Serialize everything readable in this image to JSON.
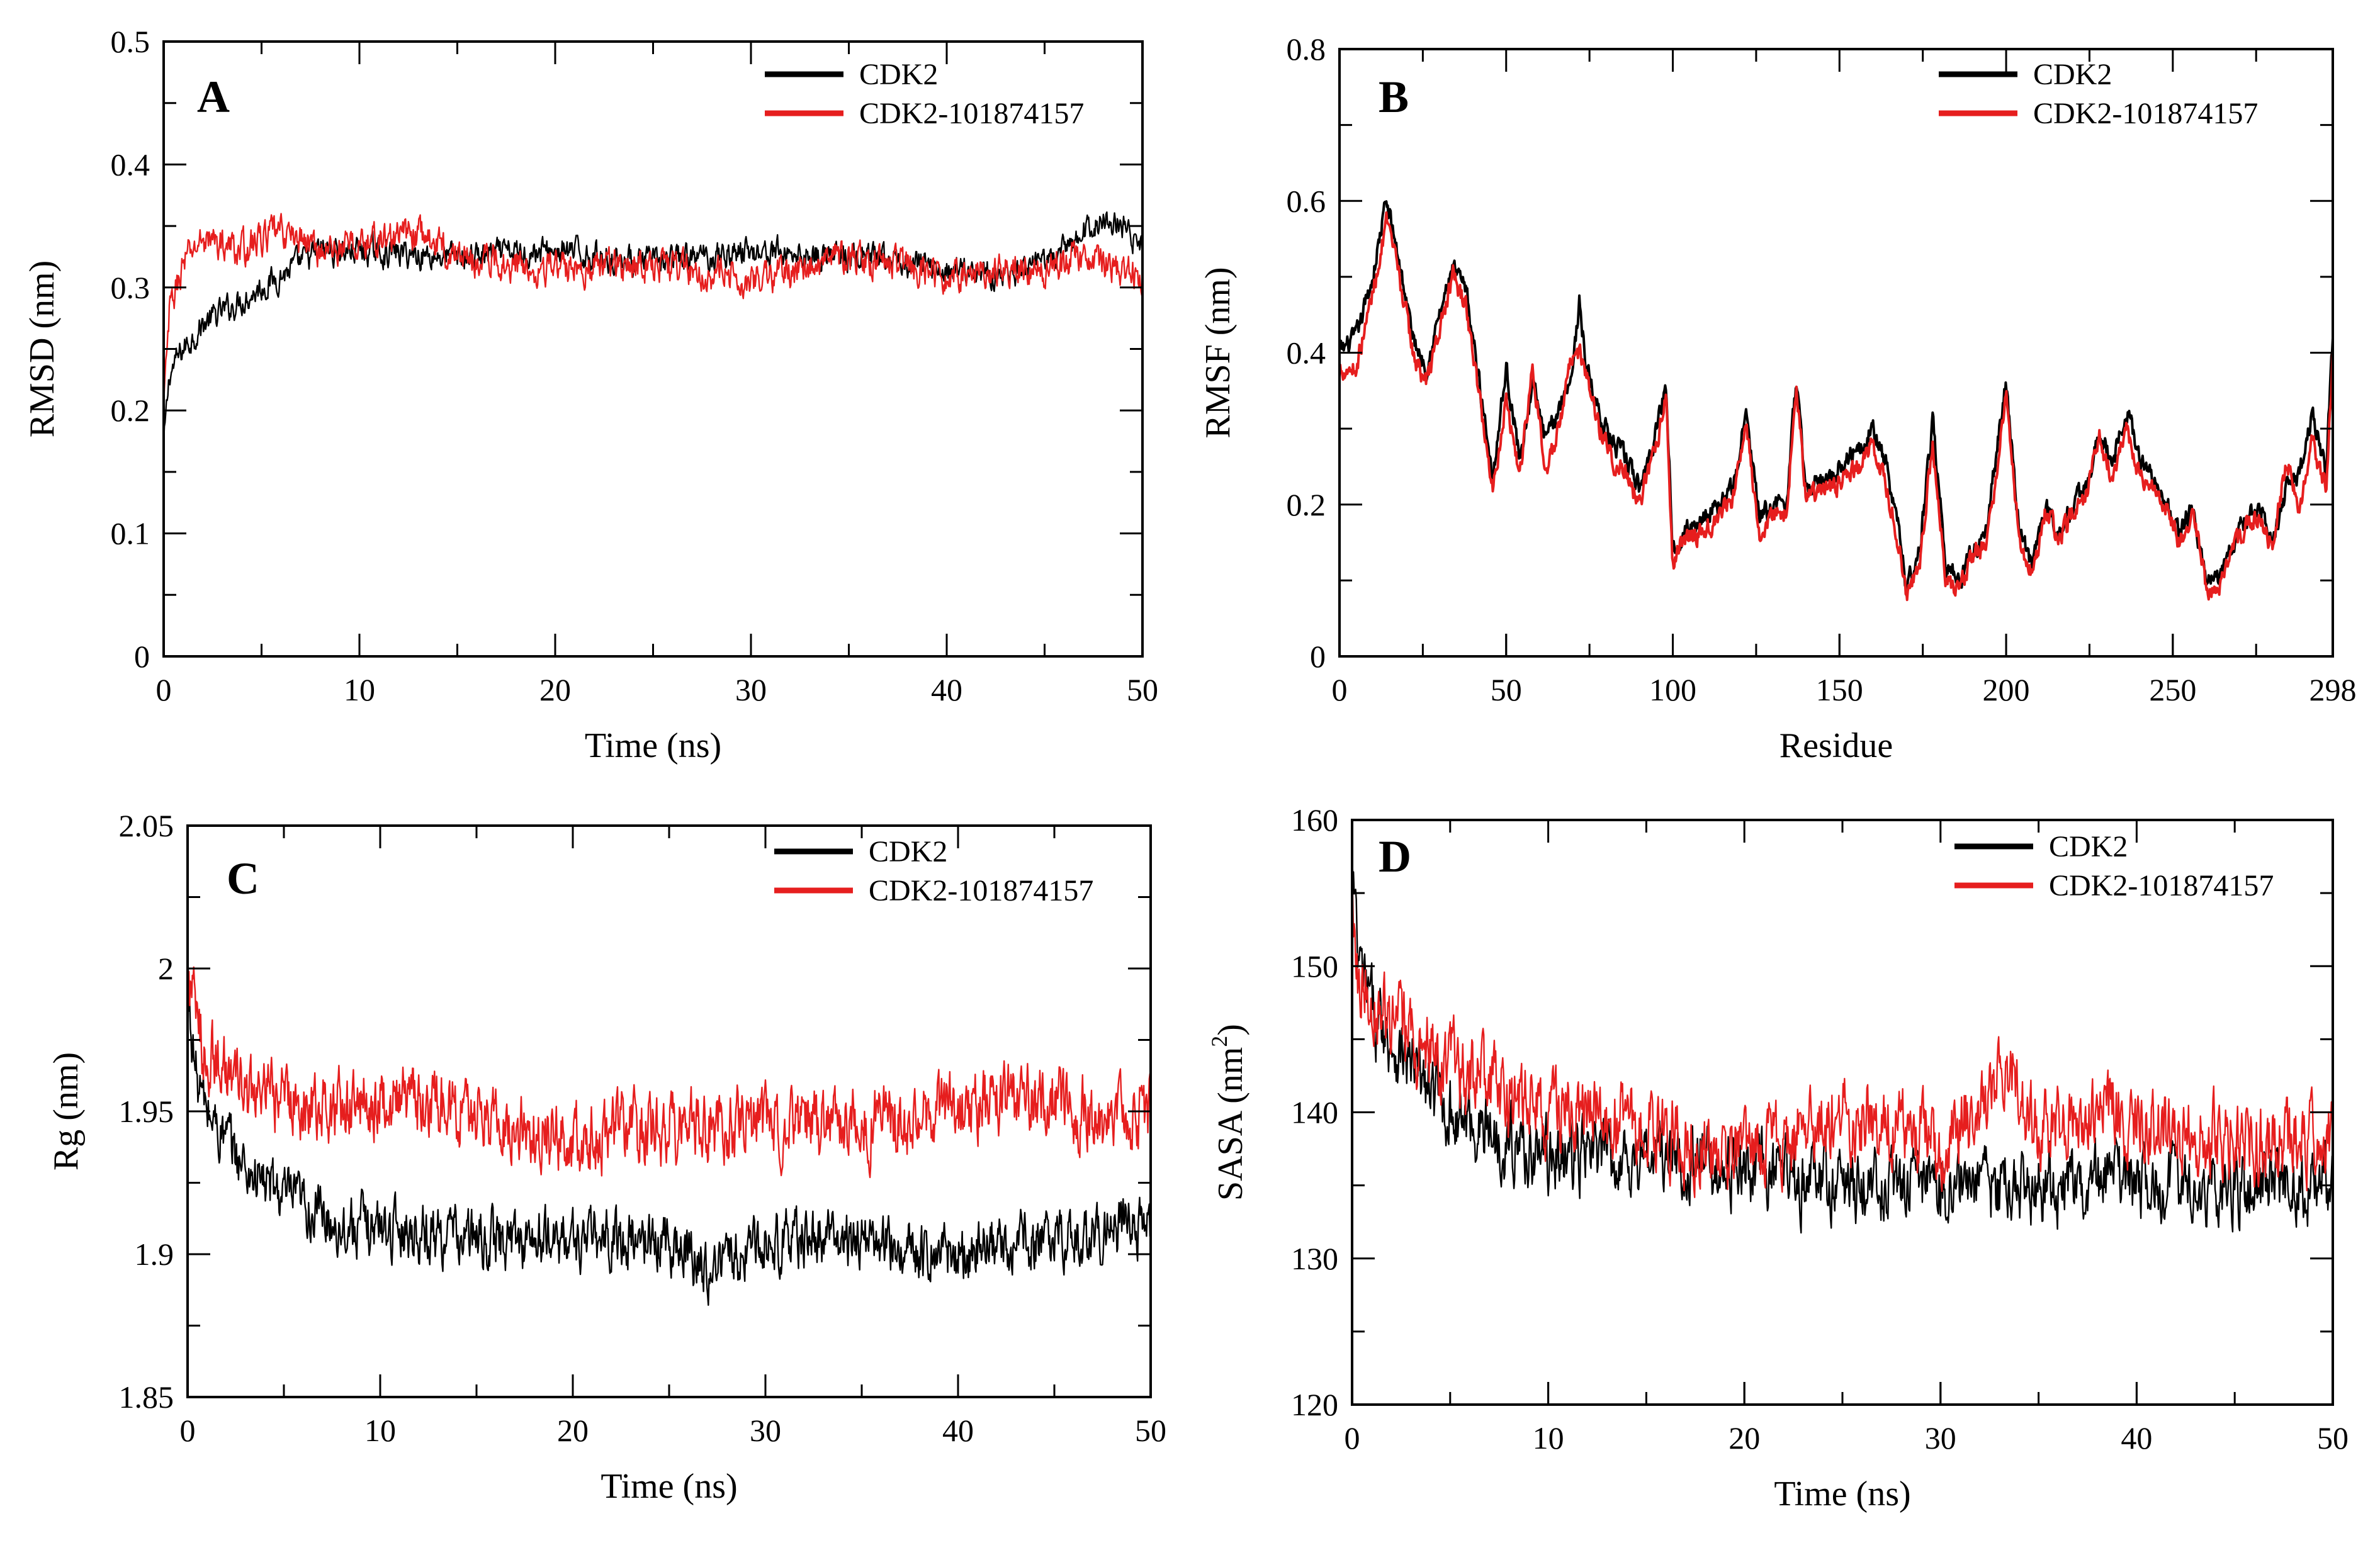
{
  "colors": {
    "cdk2": "#000000",
    "complex": "#e61e1e",
    "axis": "#000000",
    "background": "#ffffff"
  },
  "chart_data": [
    {
      "panel": "A",
      "type": "line",
      "xlabel": "Time (ns)",
      "ylabel": "RMSD (nm)",
      "xlim": [
        0,
        50
      ],
      "ylim": [
        0,
        0.5
      ],
      "xticks": [
        0,
        10,
        20,
        30,
        40,
        50
      ],
      "yticks": [
        0,
        0.1,
        0.2,
        0.3,
        0.4,
        0.5
      ],
      "x_tick_labels": [
        "0",
        "10",
        "20",
        "30",
        "40",
        "50"
      ],
      "y_tick_labels": [
        "0",
        "0.1",
        "0.2",
        "0.3",
        "0.4",
        "0.5"
      ],
      "x_minor_step": 5,
      "y_minor_step": 0.05,
      "legend_position": "top-right",
      "series": [
        {
          "name": "CDK2",
          "color": "#000000",
          "noise": 0.01,
          "x": [
            0,
            0.3,
            1,
            2,
            3,
            4,
            5,
            6,
            7,
            8,
            10,
            15,
            20,
            25,
            30,
            35,
            40,
            44,
            45,
            46,
            47,
            48,
            49,
            50
          ],
          "y": [
            0.17,
            0.23,
            0.25,
            0.27,
            0.28,
            0.29,
            0.3,
            0.31,
            0.32,
            0.33,
            0.33,
            0.325,
            0.33,
            0.32,
            0.33,
            0.325,
            0.315,
            0.31,
            0.32,
            0.33,
            0.345,
            0.355,
            0.35,
            0.33
          ]
        },
        {
          "name": "CDK2-101874157",
          "color": "#e61e1e",
          "noise": 0.012,
          "x": [
            0,
            0.3,
            1,
            2,
            3,
            4,
            5,
            6,
            7,
            8,
            10,
            13,
            15,
            20,
            25,
            30,
            35,
            40,
            45,
            47,
            50
          ],
          "y": [
            0.2,
            0.28,
            0.32,
            0.34,
            0.335,
            0.33,
            0.34,
            0.345,
            0.34,
            0.33,
            0.335,
            0.345,
            0.325,
            0.315,
            0.32,
            0.305,
            0.325,
            0.31,
            0.315,
            0.325,
            0.31
          ]
        }
      ]
    },
    {
      "panel": "B",
      "type": "line",
      "xlabel": "Residue",
      "ylabel": "RMSF (nm)",
      "xlim": [
        0,
        298
      ],
      "ylim": [
        0,
        0.8
      ],
      "xticks": [
        0,
        50,
        100,
        150,
        200,
        250,
        298
      ],
      "yticks": [
        0,
        0.2,
        0.4,
        0.6,
        0.8
      ],
      "x_tick_labels": [
        "0",
        "50",
        "100",
        "150",
        "200",
        "250",
        "298"
      ],
      "y_tick_labels": [
        "0",
        "0.2",
        "0.4",
        "0.6",
        "0.8"
      ],
      "x_minor_step": 25,
      "y_minor_step": 0.1,
      "legend_position": "top-right",
      "series": [
        {
          "name": "CDK2",
          "color": "#000000",
          "noise": 0.012,
          "x": [
            0,
            5,
            10,
            14,
            18,
            22,
            26,
            30,
            34,
            38,
            42,
            46,
            50,
            54,
            58,
            62,
            66,
            70,
            72,
            74,
            78,
            82,
            86,
            90,
            94,
            98,
            100,
            102,
            106,
            110,
            114,
            118,
            122,
            126,
            130,
            134,
            137,
            140,
            144,
            148,
            152,
            156,
            160,
            164,
            168,
            170,
            174,
            178,
            182,
            186,
            190,
            194,
            198,
            200,
            204,
            208,
            212,
            216,
            220,
            224,
            228,
            232,
            236,
            240,
            244,
            248,
            252,
            256,
            260,
            264,
            268,
            272,
            276,
            280,
            284,
            288,
            292,
            296,
            298
          ],
          "y": [
            0.4,
            0.42,
            0.5,
            0.6,
            0.52,
            0.42,
            0.38,
            0.45,
            0.51,
            0.48,
            0.36,
            0.24,
            0.38,
            0.26,
            0.36,
            0.28,
            0.33,
            0.38,
            0.47,
            0.38,
            0.32,
            0.28,
            0.26,
            0.22,
            0.28,
            0.36,
            0.14,
            0.16,
            0.17,
            0.19,
            0.2,
            0.22,
            0.32,
            0.18,
            0.2,
            0.2,
            0.36,
            0.22,
            0.23,
            0.24,
            0.26,
            0.28,
            0.3,
            0.25,
            0.16,
            0.09,
            0.14,
            0.31,
            0.12,
            0.1,
            0.14,
            0.16,
            0.3,
            0.36,
            0.16,
            0.12,
            0.2,
            0.16,
            0.2,
            0.22,
            0.3,
            0.25,
            0.33,
            0.26,
            0.24,
            0.2,
            0.16,
            0.2,
            0.1,
            0.1,
            0.15,
            0.18,
            0.2,
            0.15,
            0.22,
            0.24,
            0.32,
            0.24,
            0.42
          ]
        },
        {
          "name": "CDK2-101874157",
          "color": "#e61e1e",
          "noise": 0.012,
          "x": [
            0,
            5,
            10,
            14,
            18,
            22,
            26,
            30,
            34,
            38,
            42,
            46,
            50,
            54,
            58,
            62,
            66,
            70,
            72,
            74,
            78,
            82,
            86,
            90,
            94,
            98,
            100,
            102,
            106,
            110,
            114,
            118,
            122,
            126,
            130,
            134,
            137,
            140,
            144,
            148,
            152,
            156,
            160,
            164,
            168,
            170,
            174,
            178,
            182,
            186,
            190,
            194,
            198,
            200,
            204,
            208,
            212,
            216,
            220,
            224,
            228,
            232,
            236,
            240,
            244,
            248,
            252,
            256,
            260,
            264,
            268,
            272,
            276,
            280,
            284,
            288,
            292,
            296,
            298
          ],
          "y": [
            0.38,
            0.38,
            0.48,
            0.57,
            0.5,
            0.4,
            0.36,
            0.43,
            0.5,
            0.46,
            0.34,
            0.22,
            0.34,
            0.24,
            0.38,
            0.24,
            0.3,
            0.4,
            0.4,
            0.37,
            0.3,
            0.26,
            0.24,
            0.2,
            0.26,
            0.34,
            0.12,
            0.15,
            0.16,
            0.17,
            0.18,
            0.21,
            0.3,
            0.16,
            0.19,
            0.19,
            0.35,
            0.21,
            0.22,
            0.22,
            0.24,
            0.25,
            0.28,
            0.22,
            0.14,
            0.08,
            0.12,
            0.28,
            0.1,
            0.09,
            0.13,
            0.15,
            0.27,
            0.35,
            0.15,
            0.11,
            0.2,
            0.15,
            0.19,
            0.21,
            0.29,
            0.23,
            0.3,
            0.24,
            0.22,
            0.2,
            0.15,
            0.19,
            0.09,
            0.09,
            0.14,
            0.17,
            0.19,
            0.14,
            0.26,
            0.2,
            0.28,
            0.22,
            0.4
          ]
        }
      ]
    },
    {
      "panel": "C",
      "type": "line",
      "xlabel": "Time (ns)",
      "ylabel": "Rg (nm)",
      "xlim": [
        0,
        50
      ],
      "ylim": [
        1.85,
        2.05
      ],
      "xticks": [
        0,
        10,
        20,
        30,
        40,
        50
      ],
      "yticks": [
        1.85,
        1.9,
        1.95,
        2.0,
        2.05
      ],
      "x_tick_labels": [
        "0",
        "10",
        "20",
        "30",
        "40",
        "50"
      ],
      "y_tick_labels": [
        "1.85",
        "1.9",
        "1.95",
        "2",
        "2.05"
      ],
      "x_minor_step": 5,
      "y_minor_step": 0.025,
      "legend_position": "top-right",
      "series": [
        {
          "name": "CDK2",
          "color": "#000000",
          "noise": 0.009,
          "x": [
            0,
            0.5,
            1,
            2,
            3,
            5,
            8,
            10,
            15,
            20,
            25,
            27,
            30,
            35,
            40,
            45,
            50
          ],
          "y": [
            1.99,
            1.96,
            1.95,
            1.94,
            1.93,
            1.92,
            1.91,
            1.91,
            1.905,
            1.905,
            1.905,
            1.895,
            1.905,
            1.905,
            1.9,
            1.905,
            1.91
          ]
        },
        {
          "name": "CDK2-101874157",
          "color": "#e61e1e",
          "noise": 0.011,
          "x": [
            0,
            0.5,
            1,
            2,
            3,
            5,
            8,
            10,
            15,
            20,
            25,
            30,
            35,
            40,
            45,
            48,
            50
          ],
          "y": [
            2.0,
            1.98,
            1.97,
            1.965,
            1.955,
            1.955,
            1.95,
            1.955,
            1.95,
            1.94,
            1.945,
            1.945,
            1.945,
            1.95,
            1.955,
            1.945,
            1.95
          ]
        }
      ]
    },
    {
      "panel": "D",
      "type": "line",
      "xlabel": "Time (ns)",
      "ylabel": "SASA (nm",
      "ylabel_sup": "2",
      "ylabel_close": ")",
      "xlim": [
        0,
        50
      ],
      "ylim": [
        120,
        160
      ],
      "xticks": [
        0,
        10,
        20,
        30,
        40,
        50
      ],
      "yticks": [
        120,
        130,
        140,
        150,
        160
      ],
      "x_tick_labels": [
        "0",
        "10",
        "20",
        "30",
        "40",
        "50"
      ],
      "y_tick_labels": [
        "120",
        "130",
        "140",
        "150",
        "160"
      ],
      "x_minor_step": 5,
      "y_minor_step": 5,
      "legend_position": "top-right",
      "series": [
        {
          "name": "CDK2",
          "color": "#000000",
          "noise": 2.2,
          "x": [
            0,
            0.3,
            1,
            2,
            3,
            5,
            8,
            10,
            15,
            20,
            25,
            30,
            35,
            40,
            45,
            50
          ],
          "y": [
            157,
            150,
            147,
            145,
            143,
            140,
            138,
            137,
            137,
            136,
            135,
            135,
            135,
            135,
            135,
            135
          ]
        },
        {
          "name": "CDK2-101874157",
          "color": "#e61e1e",
          "noise": 2.4,
          "x": [
            0,
            0.3,
            1,
            2,
            3,
            5,
            8,
            10,
            15,
            20,
            25,
            30,
            33.5,
            35,
            38,
            40,
            45,
            50
          ],
          "y": [
            156,
            150,
            148,
            146,
            145,
            143,
            141,
            140,
            139,
            137,
            140,
            138,
            143,
            138,
            141,
            139,
            138,
            138
          ]
        }
      ]
    }
  ]
}
